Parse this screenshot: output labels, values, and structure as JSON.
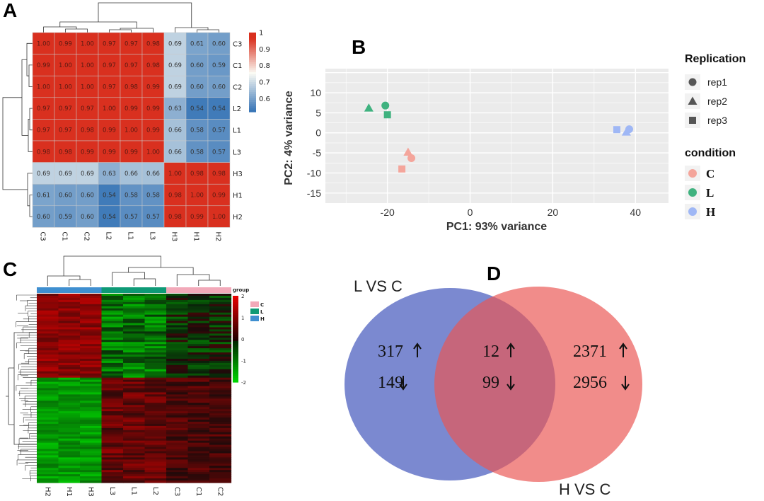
{
  "panels": {
    "a": "A",
    "b": "B",
    "c": "C",
    "d": "D"
  },
  "chart_data": [
    {
      "type": "heatmap",
      "panel": "A",
      "title": "",
      "rows": [
        "C3",
        "C1",
        "C2",
        "L2",
        "L1",
        "L3",
        "H3",
        "H1",
        "H2"
      ],
      "cols": [
        "C3",
        "C1",
        "C2",
        "L2",
        "L1",
        "L3",
        "H3",
        "H1",
        "H2"
      ],
      "values": [
        [
          1.0,
          0.99,
          1.0,
          0.97,
          0.97,
          0.98,
          0.69,
          0.61,
          0.6
        ],
        [
          0.99,
          1.0,
          1.0,
          0.97,
          0.97,
          0.98,
          0.69,
          0.6,
          0.59
        ],
        [
          1.0,
          1.0,
          1.0,
          0.97,
          0.98,
          0.99,
          0.69,
          0.6,
          0.6
        ],
        [
          0.97,
          0.97,
          0.97,
          1.0,
          0.99,
          0.99,
          0.63,
          0.54,
          0.54
        ],
        [
          0.97,
          0.97,
          0.98,
          0.99,
          1.0,
          0.99,
          0.66,
          0.58,
          0.57
        ],
        [
          0.98,
          0.98,
          0.99,
          0.99,
          0.99,
          1.0,
          0.66,
          0.58,
          0.57
        ],
        [
          0.69,
          0.69,
          0.69,
          0.63,
          0.66,
          0.66,
          1.0,
          0.98,
          0.98
        ],
        [
          0.61,
          0.6,
          0.6,
          0.54,
          0.58,
          0.58,
          0.98,
          1.0,
          0.99
        ],
        [
          0.6,
          0.59,
          0.6,
          0.54,
          0.57,
          0.57,
          0.98,
          0.99,
          1.0
        ]
      ],
      "colorbar_ticks": [
        "1",
        "0.9",
        "0.8",
        "0.7",
        "0.6"
      ],
      "colorbar_range": [
        0.52,
        1.0
      ],
      "colors": {
        "low": "#2f6fb4",
        "mid": "#fbfbf4",
        "high": "#d9301f"
      }
    },
    {
      "type": "scatter",
      "panel": "B",
      "xlabel": "PC1: 93% variance",
      "ylabel": "PC2: 4% variance",
      "xlim": [
        -35,
        48
      ],
      "ylim": [
        -17.5,
        16
      ],
      "xticks": [
        "-20",
        "0",
        "20",
        "40"
      ],
      "yticks": [
        "10",
        "5",
        "0",
        "-5",
        "-10",
        "-15"
      ],
      "points": [
        {
          "x": -24.5,
          "y": 6.2,
          "condition": "L",
          "rep": "rep2"
        },
        {
          "x": -20.5,
          "y": 6.8,
          "condition": "L",
          "rep": "rep1"
        },
        {
          "x": -20.0,
          "y": 4.5,
          "condition": "L",
          "rep": "rep3"
        },
        {
          "x": -15.0,
          "y": -4.8,
          "condition": "C",
          "rep": "rep2"
        },
        {
          "x": -14.2,
          "y": -6.3,
          "condition": "C",
          "rep": "rep1"
        },
        {
          "x": -16.5,
          "y": -9.0,
          "condition": "C",
          "rep": "rep3"
        },
        {
          "x": 35.5,
          "y": 0.8,
          "condition": "H",
          "rep": "rep3"
        },
        {
          "x": 37.8,
          "y": 0.2,
          "condition": "H",
          "rep": "rep2"
        },
        {
          "x": 38.5,
          "y": 0.9,
          "condition": "H",
          "rep": "rep1"
        }
      ],
      "legend_replication": {
        "title": "Replication",
        "items": [
          "rep1",
          "rep2",
          "rep3"
        ]
      },
      "legend_condition": {
        "title": "condition",
        "items": [
          "C",
          "L",
          "H"
        ]
      },
      "colors": {
        "C": "#f4a59b",
        "L": "#3fb27f",
        "H": "#9fb7f5",
        "panel_bg": "#ebebeb"
      }
    },
    {
      "type": "heatmap",
      "panel": "C",
      "cols": [
        "H2",
        "H1",
        "H3",
        "L3",
        "L1",
        "L2",
        "C3",
        "C1",
        "C2"
      ],
      "col_groups": [
        "H",
        "H",
        "H",
        "L",
        "L",
        "L",
        "C",
        "C",
        "C"
      ],
      "legend_title": "group",
      "legend_items": [
        "C",
        "L",
        "H"
      ],
      "colorbar_ticks": [
        "2",
        "1",
        "0",
        "-1",
        "-2"
      ],
      "colors": {
        "C": "#f2a9b9",
        "L": "#0e9a76",
        "H": "#3f8fd0"
      }
    },
    {
      "type": "venn",
      "panel": "D",
      "sets": [
        "L VS C",
        "H VS C"
      ],
      "values": {
        "L_only_up": "317",
        "L_only_down": "149",
        "both_up": "12",
        "both_down": "99",
        "H_only_up": "2371",
        "H_only_down": "2956"
      },
      "colors": {
        "L": "#5e6fc6",
        "H": "#ea5552"
      }
    }
  ]
}
